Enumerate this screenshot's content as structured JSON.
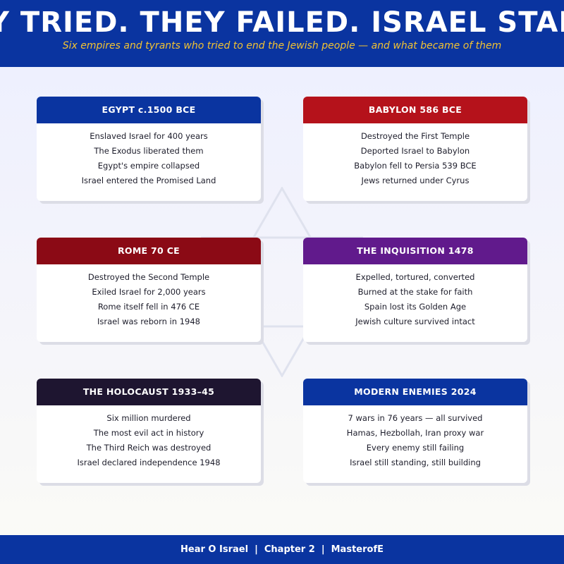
{
  "header": {
    "title": "THEY TRIED. THEY FAILED. ISRAEL STANDS.",
    "subtitle": "Six empires and tyrants who tried to end the Jewish people — and what became of them"
  },
  "colors": {
    "header_bg": "#0a34a0",
    "subtitle": "#f2c232",
    "egypt": "#0a34a0",
    "babylon": "#b5121b",
    "rome": "#8b0a15",
    "inquisition": "#611a8c",
    "holocaust": "#1e1530",
    "modern": "#0a34a0"
  },
  "cards": [
    {
      "title": "EGYPT c.1500 BCE",
      "color": "#0a34a0",
      "lines": [
        "Enslaved Israel for 400 years",
        "The Exodus liberated them",
        "Egypt's empire collapsed",
        "Israel entered the Promised Land"
      ]
    },
    {
      "title": "BABYLON 586 BCE",
      "color": "#b5121b",
      "lines": [
        "Destroyed the First Temple",
        "Deported Israel to Babylon",
        "Babylon fell to Persia 539 BCE",
        "Jews returned under Cyrus"
      ]
    },
    {
      "title": "ROME 70 CE",
      "color": "#8b0a15",
      "lines": [
        "Destroyed the Second Temple",
        "Exiled Israel for 2,000 years",
        "Rome itself fell in 476 CE",
        "Israel was reborn in 1948"
      ]
    },
    {
      "title": "THE INQUISITION 1478",
      "color": "#611a8c",
      "lines": [
        "Expelled, tortured, converted",
        "Burned at the stake for faith",
        "Spain lost its Golden Age",
        "Jewish culture survived intact"
      ]
    },
    {
      "title": "THE HOLOCAUST 1933–45",
      "color": "#1e1530",
      "lines": [
        "Six million murdered",
        "The most evil act in history",
        "The Third Reich was destroyed",
        "Israel declared independence 1948"
      ]
    },
    {
      "title": "MODERN ENEMIES 2024",
      "color": "#0a34a0",
      "lines": [
        "7 wars in 76 years — all survived",
        "Hamas, Hezbollah, Iran proxy war",
        "Every enemy still failing",
        "Israel still standing, still building"
      ]
    }
  ],
  "footer": {
    "text": "Hear O Israel  |  Chapter 2  |  MasterofE"
  }
}
